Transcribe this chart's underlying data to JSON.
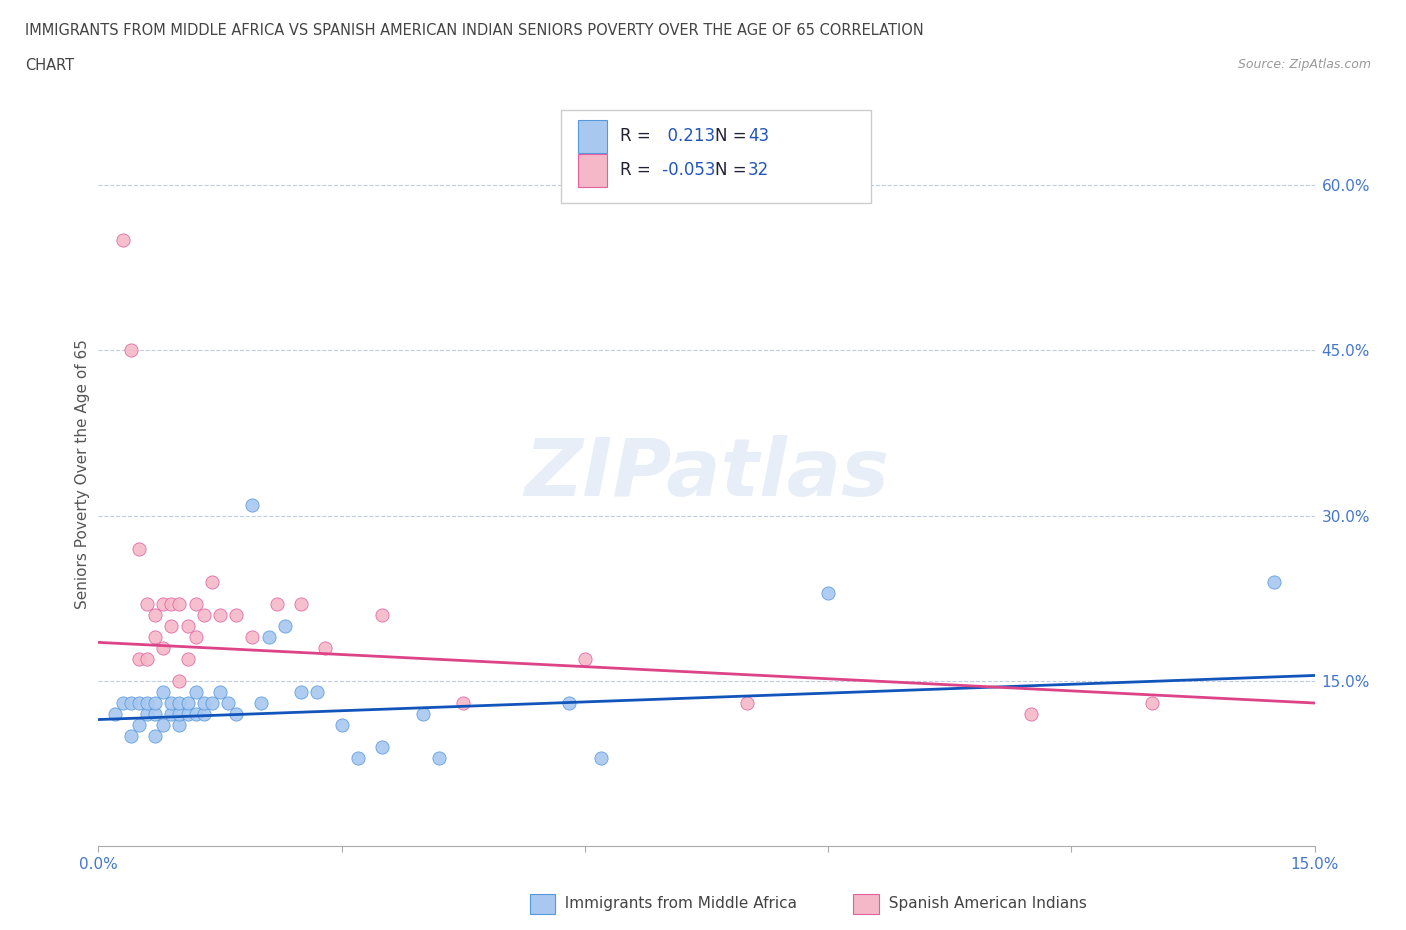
{
  "title_line1": "IMMIGRANTS FROM MIDDLE AFRICA VS SPANISH AMERICAN INDIAN SENIORS POVERTY OVER THE AGE OF 65 CORRELATION",
  "title_line2": "CHART",
  "source_text": "Source: ZipAtlas.com",
  "ylabel": "Seniors Poverty Over the Age of 65",
  "xlim": [
    0.0,
    0.15
  ],
  "ylim": [
    0.0,
    0.675
  ],
  "xticks": [
    0.0,
    0.03,
    0.06,
    0.09,
    0.12,
    0.15
  ],
  "xtick_labels": [
    "0.0%",
    "",
    "",
    "",
    "",
    "15.0%"
  ],
  "ytick_labels_right": [
    "15.0%",
    "30.0%",
    "45.0%",
    "60.0%"
  ],
  "ytick_vals_right": [
    0.15,
    0.3,
    0.45,
    0.6
  ],
  "blue_R": 0.213,
  "blue_N": 43,
  "pink_R": -0.053,
  "pink_N": 32,
  "blue_color": "#a8c8f0",
  "pink_color": "#f5b8c8",
  "blue_edge_color": "#5599dd",
  "pink_edge_color": "#e060a0",
  "blue_line_color": "#1155bb",
  "pink_line_color": "#dd4488",
  "legend_label_blue": "Immigrants from Middle Africa",
  "legend_label_pink": "Spanish American Indians",
  "watermark": "ZIPatlas",
  "blue_x": [
    0.002,
    0.003,
    0.004,
    0.004,
    0.005,
    0.005,
    0.006,
    0.006,
    0.007,
    0.007,
    0.007,
    0.008,
    0.008,
    0.009,
    0.009,
    0.01,
    0.01,
    0.01,
    0.011,
    0.011,
    0.012,
    0.012,
    0.013,
    0.013,
    0.014,
    0.015,
    0.016,
    0.017,
    0.019,
    0.02,
    0.021,
    0.023,
    0.025,
    0.027,
    0.03,
    0.032,
    0.035,
    0.04,
    0.042,
    0.058,
    0.062,
    0.09,
    0.145
  ],
  "blue_y": [
    0.12,
    0.13,
    0.1,
    0.13,
    0.11,
    0.13,
    0.12,
    0.13,
    0.1,
    0.12,
    0.13,
    0.11,
    0.14,
    0.12,
    0.13,
    0.11,
    0.12,
    0.13,
    0.12,
    0.13,
    0.12,
    0.14,
    0.12,
    0.13,
    0.13,
    0.14,
    0.13,
    0.12,
    0.31,
    0.13,
    0.19,
    0.2,
    0.14,
    0.14,
    0.11,
    0.08,
    0.09,
    0.12,
    0.08,
    0.13,
    0.08,
    0.23,
    0.24
  ],
  "pink_x": [
    0.003,
    0.004,
    0.005,
    0.005,
    0.006,
    0.006,
    0.007,
    0.007,
    0.008,
    0.008,
    0.009,
    0.009,
    0.01,
    0.01,
    0.011,
    0.011,
    0.012,
    0.012,
    0.013,
    0.014,
    0.015,
    0.017,
    0.019,
    0.022,
    0.025,
    0.028,
    0.035,
    0.045,
    0.06,
    0.08,
    0.115,
    0.13
  ],
  "pink_y": [
    0.55,
    0.45,
    0.17,
    0.27,
    0.17,
    0.22,
    0.19,
    0.21,
    0.22,
    0.18,
    0.2,
    0.22,
    0.22,
    0.15,
    0.2,
    0.17,
    0.19,
    0.22,
    0.21,
    0.24,
    0.21,
    0.21,
    0.19,
    0.22,
    0.22,
    0.18,
    0.21,
    0.13,
    0.17,
    0.13,
    0.12,
    0.13
  ]
}
